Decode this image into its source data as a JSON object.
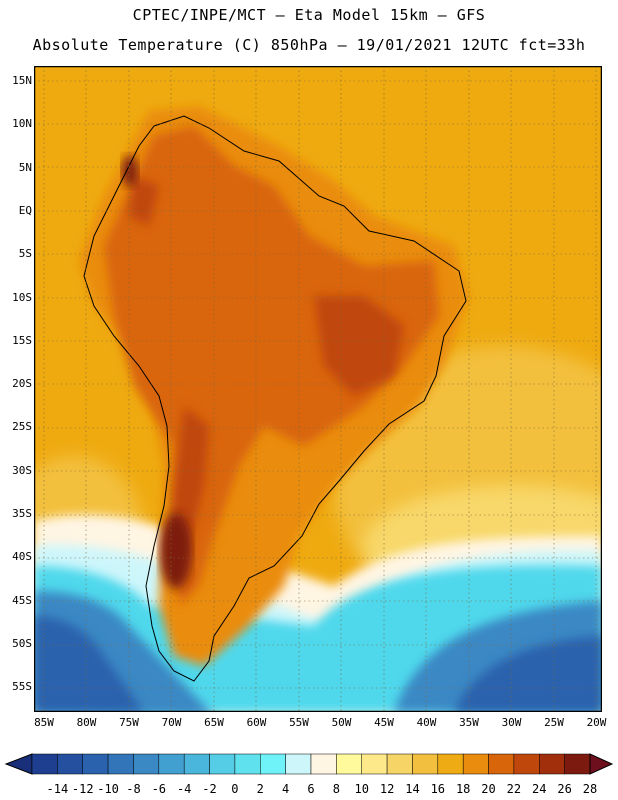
{
  "title_line1": "CPTEC/INPE/MCT –  Eta Model 15km – GFS",
  "title_line2": "Absolute Temperature (C) 850hPa – 19/01/2021 12UTC fct=33h",
  "lat_labels": [
    "15N",
    "10N",
    "5N",
    "EQ",
    "5S",
    "10S",
    "15S",
    "20S",
    "25S",
    "30S",
    "35S",
    "40S",
    "45S",
    "50S",
    "55S"
  ],
  "lon_labels": [
    "85W",
    "80W",
    "75W",
    "70W",
    "65W",
    "60W",
    "55W",
    "50W",
    "45W",
    "40W",
    "35W",
    "30W",
    "25W",
    "20W"
  ],
  "colorbar": {
    "labels": [
      "-14",
      "-12",
      "-10",
      "-8",
      "-6",
      "-4",
      "-2",
      "0",
      "2",
      "4",
      "6",
      "8",
      "10",
      "12",
      "14",
      "16",
      "18",
      "20",
      "22",
      "24",
      "26",
      "28"
    ],
    "colors": [
      "#1e3f8f",
      "#24509f",
      "#2a62ad",
      "#3275b9",
      "#3a88c4",
      "#42a0d0",
      "#4bb6dc",
      "#55cde6",
      "#5fe1ee",
      "#6ff2f8",
      "#cdf6fb",
      "#fff5e3",
      "#fffb9c",
      "#fde98a",
      "#f7d466",
      "#f2bf3e",
      "#efab14",
      "#ea8c0d",
      "#d9650b",
      "#c0470c",
      "#a22f0c",
      "#7d1a10"
    ],
    "low_arrow_color": "#1a2f7a",
    "high_arrow_color": "#6e0f1e"
  },
  "map_colors": {
    "ocean_warm": "#efaa10",
    "ocean_mild": "#f3c03e",
    "ocean_cool": "#f8d86a",
    "very_cold": "#2a62ad",
    "cold": "#3a88c4",
    "cyan": "#4fd8ec",
    "light_cyan": "#cdf6fb",
    "cream": "#fff5e3",
    "hot": "#d9650b",
    "hotter": "#c0470c",
    "hottest": "#7d1a10",
    "land_warm": "#ea8c0d"
  }
}
